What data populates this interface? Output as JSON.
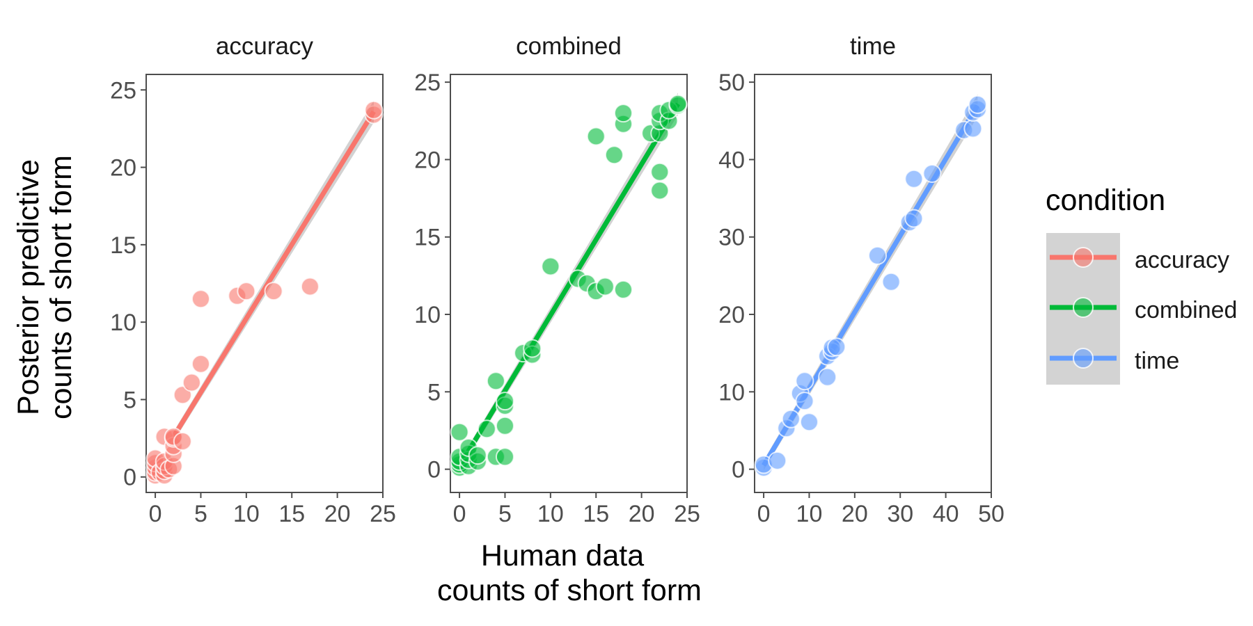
{
  "chart_data": {
    "type": "scatter",
    "ylabel": [
      "Posterior predictive",
      "counts of short form"
    ],
    "xlabel": [
      "Human data",
      "counts of short form"
    ],
    "legend": {
      "title": "condition",
      "position": "right",
      "entries": [
        "accuracy",
        "combined",
        "time"
      ]
    },
    "colors": {
      "accuracy": "#F8766D",
      "combined": "#00BA38",
      "time": "#619CFF"
    },
    "grid": false,
    "panels": [
      {
        "title": "accuracy",
        "xlim": [
          -1,
          25
        ],
        "ylim": [
          -1,
          26
        ],
        "xticks": [
          0,
          5,
          10,
          15,
          20,
          25
        ],
        "yticks": [
          0,
          5,
          10,
          15,
          20,
          25
        ],
        "fit": {
          "x": [
            2,
            24
          ],
          "y": [
            2.6,
            23.6
          ]
        },
        "points": [
          [
            0,
            0.1
          ],
          [
            0,
            0.3
          ],
          [
            0,
            0.6
          ],
          [
            0,
            0.9
          ],
          [
            0,
            1.2
          ],
          [
            0.5,
            0.3
          ],
          [
            1,
            0.1
          ],
          [
            1,
            0.4
          ],
          [
            1,
            0.7
          ],
          [
            1,
            1.0
          ],
          [
            1,
            2.6
          ],
          [
            1.5,
            0.5
          ],
          [
            2,
            0.7
          ],
          [
            2,
            1.5
          ],
          [
            2,
            2.0
          ],
          [
            2,
            2.5
          ],
          [
            2,
            2.6
          ],
          [
            3,
            2.3
          ],
          [
            3,
            5.3
          ],
          [
            4,
            6.1
          ],
          [
            5,
            7.3
          ],
          [
            5,
            11.5
          ],
          [
            9,
            11.7
          ],
          [
            10,
            12.0
          ],
          [
            13,
            12.0
          ],
          [
            17,
            12.3
          ],
          [
            24,
            23.4
          ],
          [
            24,
            23.7
          ]
        ]
      },
      {
        "title": "combined",
        "xlim": [
          -1,
          25
        ],
        "ylim": [
          -1.5,
          25.5
        ],
        "xticks": [
          0,
          5,
          10,
          15,
          20,
          25
        ],
        "yticks": [
          0,
          5,
          10,
          15,
          20,
          25
        ],
        "fit": {
          "x": [
            0,
            24
          ],
          "y": [
            0.2,
            23.6
          ]
        },
        "points": [
          [
            0,
            0.1
          ],
          [
            0,
            0.3
          ],
          [
            0,
            0.5
          ],
          [
            0,
            0.8
          ],
          [
            0,
            2.4
          ],
          [
            1,
            0.2
          ],
          [
            1,
            0.6
          ],
          [
            1,
            1.0
          ],
          [
            1,
            1.4
          ],
          [
            2,
            0.5
          ],
          [
            2,
            0.9
          ],
          [
            3,
            2.6
          ],
          [
            4,
            0.8
          ],
          [
            4,
            5.7
          ],
          [
            5,
            0.8
          ],
          [
            5,
            2.8
          ],
          [
            5,
            4.1
          ],
          [
            5,
            4.4
          ],
          [
            7,
            7.5
          ],
          [
            8,
            7.4
          ],
          [
            8,
            7.8
          ],
          [
            10,
            13.1
          ],
          [
            13,
            12.3
          ],
          [
            14,
            12.0
          ],
          [
            15,
            11.5
          ],
          [
            15,
            21.5
          ],
          [
            16,
            11.8
          ],
          [
            17,
            20.3
          ],
          [
            18,
            11.6
          ],
          [
            18,
            22.3
          ],
          [
            18,
            23.0
          ],
          [
            21,
            21.7
          ],
          [
            22,
            18.0
          ],
          [
            22,
            19.2
          ],
          [
            22,
            21.7
          ],
          [
            22,
            22.5
          ],
          [
            22,
            23.0
          ],
          [
            23,
            22.5
          ],
          [
            23,
            23.2
          ],
          [
            24,
            23.5
          ],
          [
            24,
            23.6
          ]
        ]
      },
      {
        "title": "time",
        "xlim": [
          -2,
          50
        ],
        "ylim": [
          -3,
          51
        ],
        "xticks": [
          0,
          10,
          20,
          30,
          40,
          50
        ],
        "yticks": [
          0,
          10,
          20,
          30,
          40,
          50
        ],
        "fit": {
          "x": [
            0,
            47
          ],
          "y": [
            0.5,
            47.0
          ]
        },
        "points": [
          [
            0,
            0.2
          ],
          [
            0,
            0.6
          ],
          [
            3,
            1.1
          ],
          [
            5,
            5.3
          ],
          [
            6,
            6.5
          ],
          [
            8,
            9.8
          ],
          [
            9,
            8.8
          ],
          [
            9,
            11.4
          ],
          [
            10,
            6.1
          ],
          [
            14,
            11.9
          ],
          [
            14,
            14.6
          ],
          [
            15,
            15.2
          ],
          [
            15,
            15.7
          ],
          [
            16,
            15.8
          ],
          [
            25,
            27.6
          ],
          [
            28,
            24.2
          ],
          [
            32,
            31.9
          ],
          [
            33,
            32.4
          ],
          [
            33,
            37.5
          ],
          [
            37,
            38.2
          ],
          [
            44,
            43.8
          ],
          [
            46,
            44.0
          ],
          [
            46,
            46.1
          ],
          [
            47,
            46.5
          ],
          [
            47,
            47.1
          ]
        ]
      }
    ]
  }
}
